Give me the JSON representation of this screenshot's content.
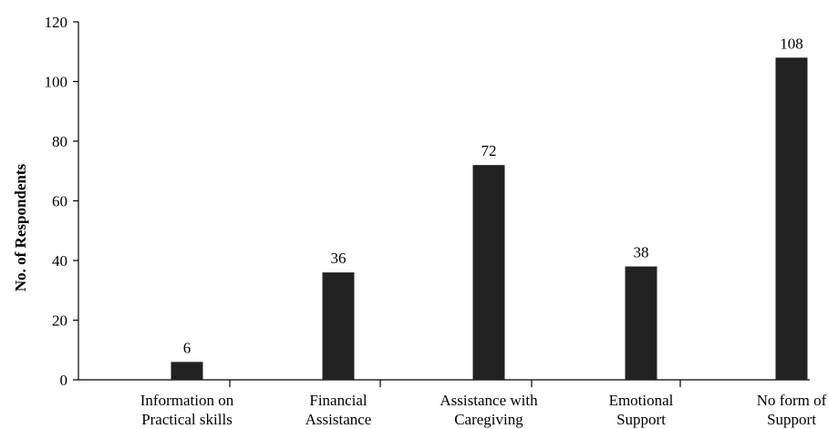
{
  "chart_data": {
    "type": "bar",
    "title": "",
    "xlabel": "",
    "ylabel": "No. of Respondents",
    "ylim": [
      0,
      120
    ],
    "yticks": [
      0,
      20,
      40,
      60,
      80,
      100,
      120
    ],
    "grid": false,
    "legend": "none",
    "categories": [
      [
        "Information on",
        "Practical skills"
      ],
      [
        "Financial",
        "Assistance"
      ],
      [
        "Assistance with",
        "Caregiving"
      ],
      [
        "Emotional",
        "Support"
      ],
      [
        "No form of",
        "Support"
      ]
    ],
    "values": [
      6,
      36,
      72,
      38,
      108
    ],
    "bar_color": "#222222"
  }
}
